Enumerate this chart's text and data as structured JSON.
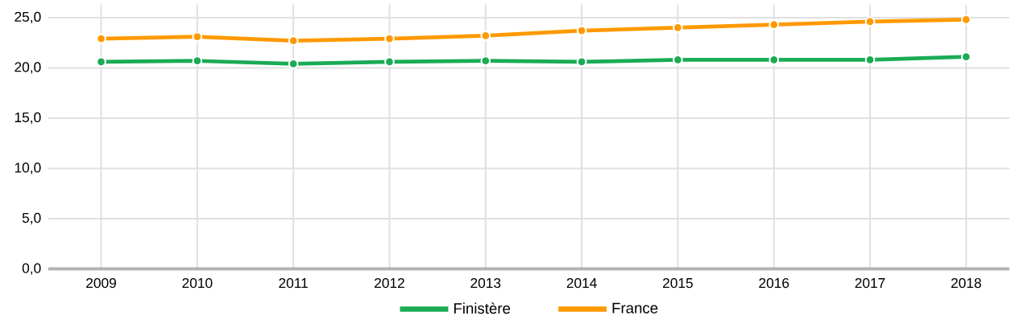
{
  "chart_data": {
    "type": "line",
    "categories": [
      "2009",
      "2010",
      "2011",
      "2012",
      "2013",
      "2014",
      "2015",
      "2016",
      "2017",
      "2018"
    ],
    "series": [
      {
        "name": "Finistère",
        "color": "#1aab55",
        "values": [
          20.6,
          20.7,
          20.4,
          20.6,
          20.7,
          20.6,
          20.8,
          20.8,
          20.8,
          21.1
        ]
      },
      {
        "name": "France",
        "color": "#ff9900",
        "values": [
          22.9,
          23.1,
          22.7,
          22.9,
          23.2,
          23.7,
          24.0,
          24.3,
          24.6,
          24.8
        ]
      }
    ],
    "ylim": [
      0,
      26.3
    ],
    "yticks": [
      {
        "value": 0,
        "label": "0,0"
      },
      {
        "value": 5,
        "label": "5,0"
      },
      {
        "value": 10,
        "label": "10,0"
      },
      {
        "value": 15,
        "label": "15,0"
      },
      {
        "value": 20,
        "label": "20,0"
      },
      {
        "value": 25,
        "label": "25,0"
      }
    ],
    "grid": true,
    "legend": "bottom",
    "marker": "circle",
    "line_style": "solid"
  }
}
